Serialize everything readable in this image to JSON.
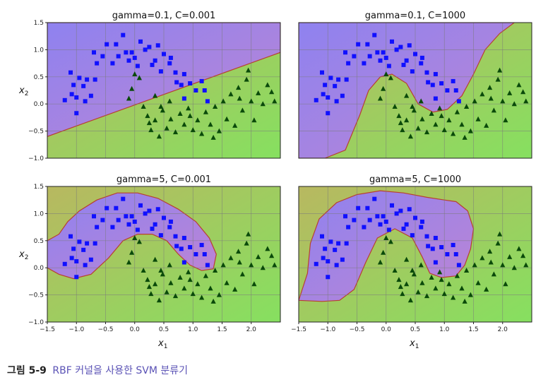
{
  "chart_data": [
    {
      "type": "scatter",
      "title": "gamma=0.1, C=0.001",
      "xlabel": "",
      "ylabel": "x2",
      "xlim": [
        -1.5,
        2.5
      ],
      "ylim": [
        -1.0,
        1.5
      ],
      "xticks": [],
      "yticks": [
        "1.5",
        "1.0",
        "0.5",
        "0.0",
        "−0.5",
        "−1.0"
      ],
      "grid": true
    },
    {
      "type": "scatter",
      "title": "gamma=0.1, C=1000",
      "xlabel": "",
      "ylabel": "",
      "xlim": [
        -1.5,
        2.5
      ],
      "ylim": [
        -1.0,
        1.5
      ],
      "xticks": [],
      "yticks": [],
      "grid": true
    },
    {
      "type": "scatter",
      "title": "gamma=5, C=0.001",
      "xlabel": "x1",
      "ylabel": "x2",
      "xlim": [
        -1.5,
        2.5
      ],
      "ylim": [
        -1.0,
        1.5
      ],
      "xticks": [
        "−1.5",
        "−1.0",
        "−0.5",
        "0.0",
        "0.5",
        "1.0",
        "1.5",
        "2.0"
      ],
      "yticks": [
        "1.5",
        "1.0",
        "0.5",
        "0.0",
        "−0.5",
        "−1.0"
      ],
      "grid": true
    },
    {
      "type": "scatter",
      "title": "gamma=5, C=1000",
      "xlabel": "x1",
      "ylabel": "",
      "xlim": [
        -1.5,
        2.5
      ],
      "ylim": [
        -1.0,
        1.5
      ],
      "xticks": [
        "−1.5",
        "−1.0",
        "−0.5",
        "0.0",
        "0.5",
        "1.0",
        "1.5",
        "2.0"
      ],
      "yticks": [],
      "grid": true
    }
  ],
  "scatter_points": {
    "class_0_squares": [
      [
        -1.0,
        0.12
      ],
      [
        -1.08,
        0.18
      ],
      [
        -1.05,
        0.35
      ],
      [
        -0.88,
        0.33
      ],
      [
        -0.75,
        0.15
      ],
      [
        -0.95,
        0.48
      ],
      [
        -0.82,
        0.45
      ],
      [
        -1.2,
        0.07
      ],
      [
        -1.1,
        0.58
      ],
      [
        -1.0,
        -0.17
      ],
      [
        -0.85,
        0.05
      ],
      [
        -0.68,
        0.45
      ],
      [
        -0.65,
        0.75
      ],
      [
        -0.7,
        0.95
      ],
      [
        -0.55,
        0.88
      ],
      [
        -0.48,
        1.1
      ],
      [
        -0.38,
        0.75
      ],
      [
        -0.28,
        0.88
      ],
      [
        -0.2,
        1.27
      ],
      [
        -0.15,
        0.95
      ],
      [
        -0.05,
        0.95
      ],
      [
        0.0,
        0.85
      ],
      [
        0.05,
        0.7
      ],
      [
        0.1,
        1.15
      ],
      [
        0.18,
        1.0
      ],
      [
        0.25,
        1.05
      ],
      [
        0.3,
        0.72
      ],
      [
        0.35,
        0.8
      ],
      [
        0.45,
        0.6
      ],
      [
        0.5,
        0.92
      ],
      [
        0.6,
        0.75
      ],
      [
        0.7,
        0.58
      ],
      [
        0.72,
        0.4
      ],
      [
        0.8,
        0.35
      ],
      [
        0.85,
        0.1
      ],
      [
        0.95,
        0.38
      ],
      [
        1.05,
        0.25
      ],
      [
        1.15,
        0.42
      ],
      [
        1.25,
        0.05
      ],
      [
        -0.32,
        1.1
      ],
      [
        -0.1,
        0.8
      ],
      [
        0.4,
        1.08
      ],
      [
        0.62,
        0.85
      ],
      [
        0.85,
        0.55
      ],
      [
        1.2,
        0.25
      ]
    ],
    "class_1_triangles": [
      [
        -0.05,
        0.28
      ],
      [
        -0.1,
        0.1
      ],
      [
        0.0,
        0.55
      ],
      [
        0.08,
        0.48
      ],
      [
        0.15,
        -0.05
      ],
      [
        0.22,
        -0.22
      ],
      [
        0.28,
        -0.48
      ],
      [
        0.35,
        -0.3
      ],
      [
        0.42,
        -0.6
      ],
      [
        0.48,
        -0.12
      ],
      [
        0.55,
        -0.45
      ],
      [
        0.62,
        -0.28
      ],
      [
        0.7,
        -0.52
      ],
      [
        0.78,
        -0.18
      ],
      [
        0.85,
        -0.38
      ],
      [
        0.92,
        -0.08
      ],
      [
        1.0,
        -0.48
      ],
      [
        1.08,
        -0.3
      ],
      [
        1.15,
        -0.55
      ],
      [
        1.22,
        -0.15
      ],
      [
        1.3,
        -0.38
      ],
      [
        1.38,
        -0.05
      ],
      [
        1.45,
        -0.5
      ],
      [
        1.52,
        0.05
      ],
      [
        1.58,
        -0.28
      ],
      [
        1.65,
        0.18
      ],
      [
        1.72,
        -0.4
      ],
      [
        1.78,
        0.3
      ],
      [
        1.85,
        -0.12
      ],
      [
        1.92,
        0.45
      ],
      [
        2.0,
        0.05
      ],
      [
        2.05,
        -0.3
      ],
      [
        2.12,
        0.2
      ],
      [
        2.2,
        0.0
      ],
      [
        2.28,
        0.35
      ],
      [
        2.35,
        0.22
      ],
      [
        1.95,
        0.62
      ],
      [
        0.35,
        0.15
      ],
      [
        0.6,
        0.05
      ],
      [
        0.25,
        -0.35
      ],
      [
        0.95,
        -0.22
      ],
      [
        1.35,
        -0.62
      ],
      [
        1.8,
        0.1
      ],
      [
        2.4,
        0.05
      ],
      [
        0.45,
        -0.05
      ]
    ]
  },
  "regions": {
    "purple": "#b878e8",
    "green": "#8fd05a",
    "boundary": "#b84030",
    "square_color": "#1010ff",
    "triangle_color": "#0a4a0a"
  },
  "caption": {
    "number": "그림 5-9",
    "text": "RBF 커널을 사용한 SVM 분류기"
  }
}
